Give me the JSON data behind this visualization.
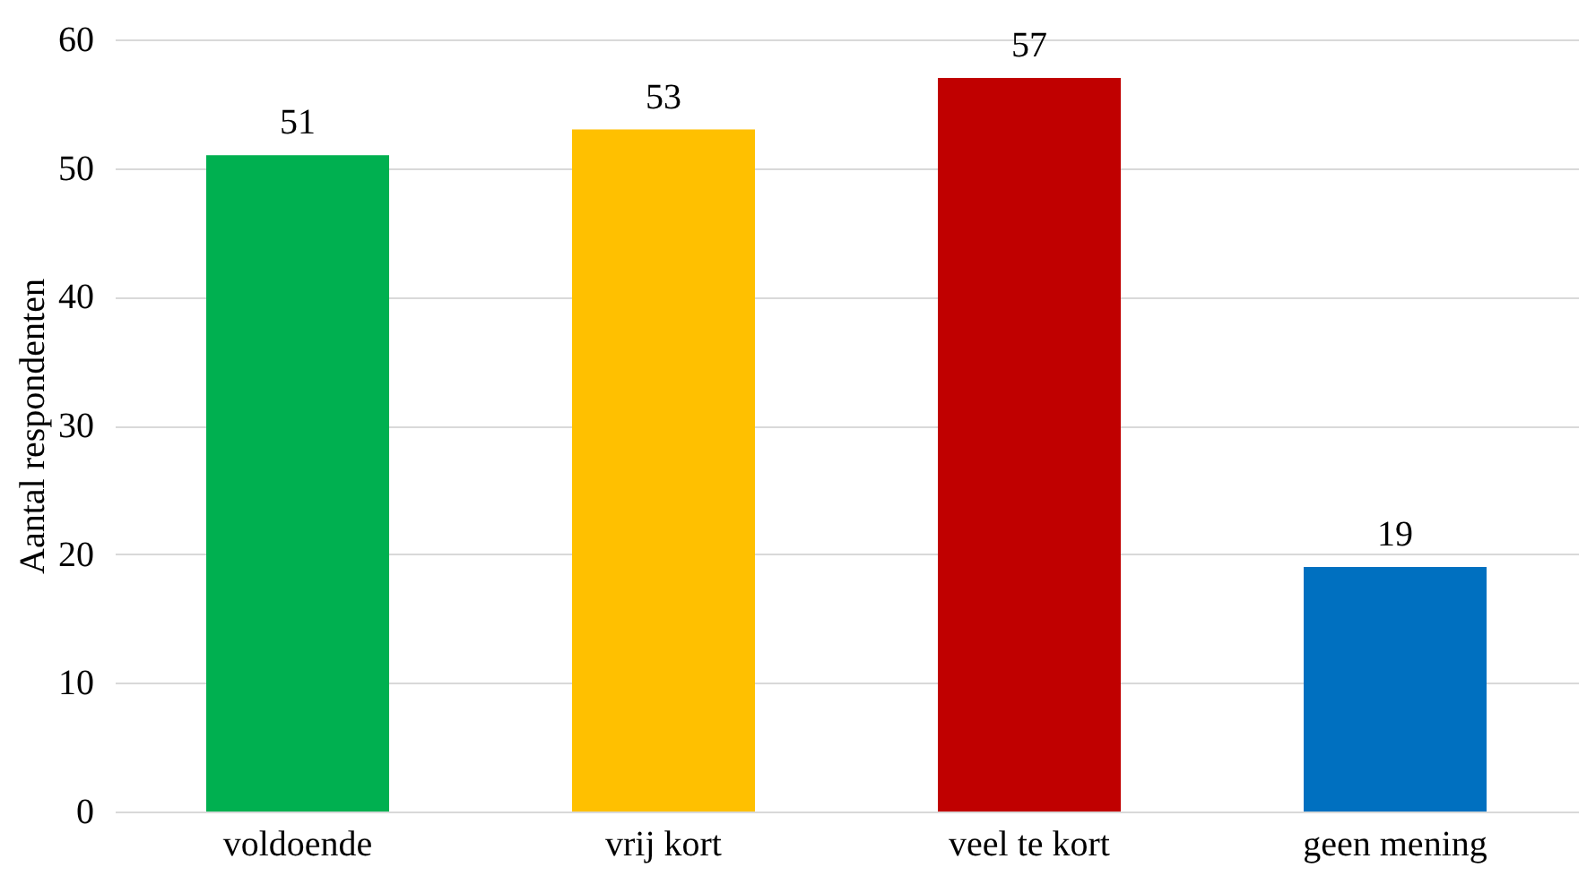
{
  "chart_data": {
    "type": "bar",
    "ylabel": "Aantal respondenten",
    "categories": [
      "voldoende",
      "vrij kort",
      "veel te kort",
      "geen mening"
    ],
    "values": [
      51,
      53,
      57,
      19
    ],
    "colors": [
      "#00b050",
      "#ffc000",
      "#c00000",
      "#0070c0"
    ],
    "ylim": [
      0,
      60
    ],
    "yticks": [
      0,
      10,
      20,
      30,
      40,
      50,
      60
    ],
    "grid": "y",
    "data_labels": true
  }
}
